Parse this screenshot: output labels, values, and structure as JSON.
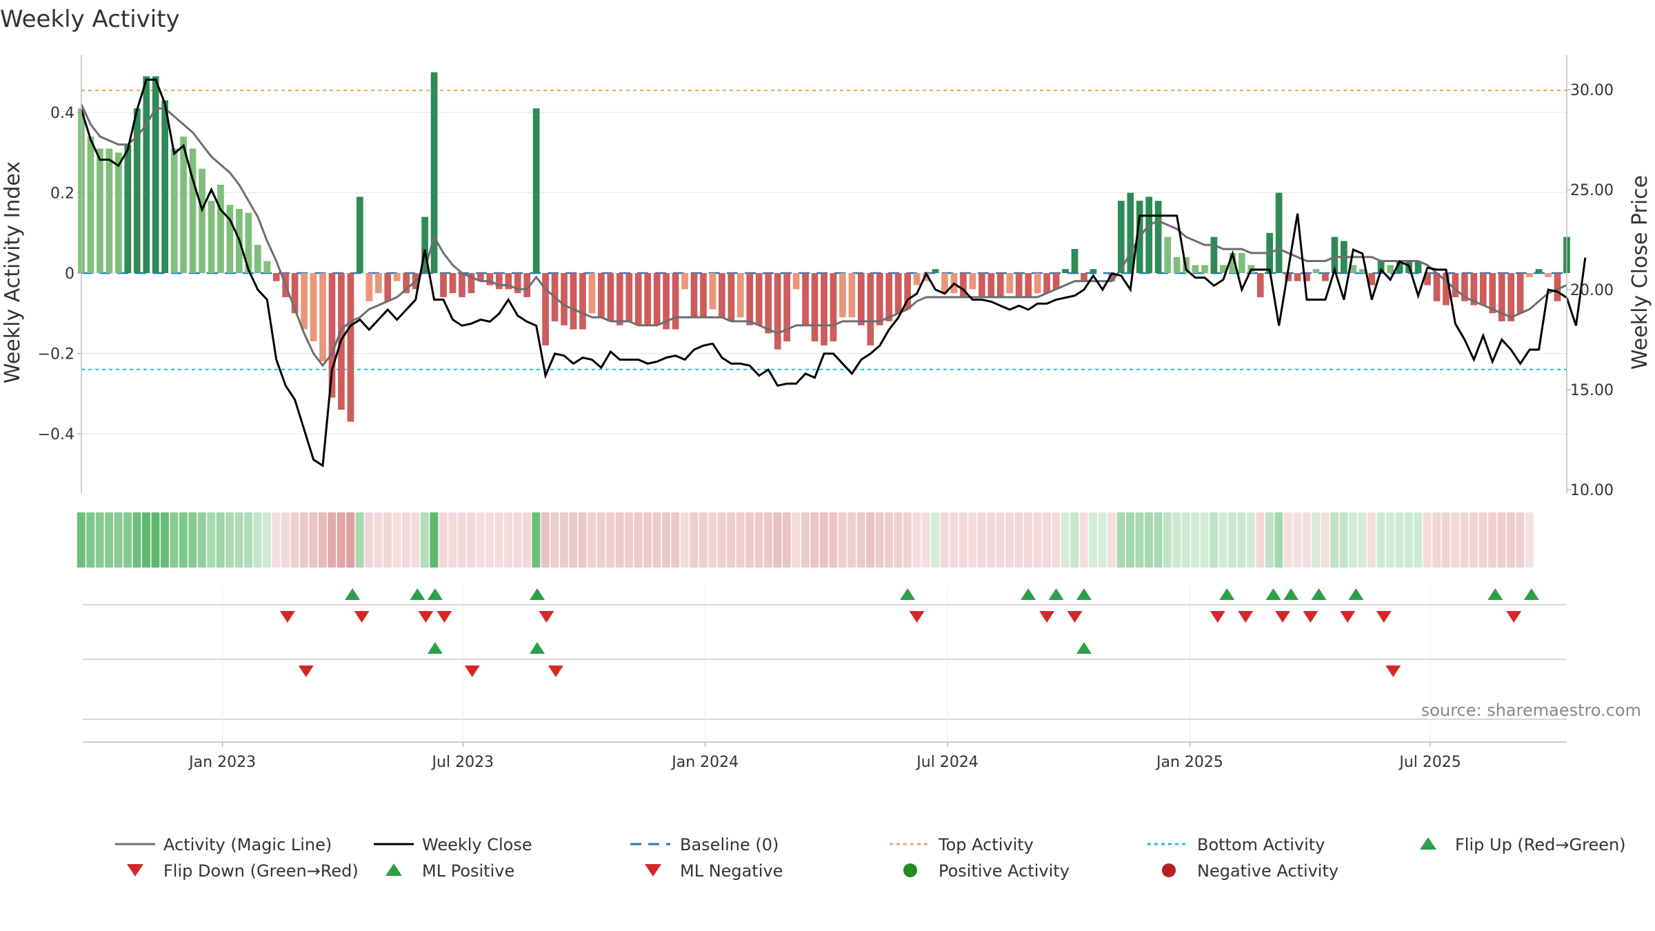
{
  "chart_data": {
    "type": "bar",
    "title": "Weekly Activity",
    "ylabel": "Weekly Activity Index",
    "ylabel_right": "Weekly Close Price",
    "ylim": [
      -0.54,
      0.55
    ],
    "ylim_right": [
      10,
      32
    ],
    "yticks": [
      -0.4,
      -0.2,
      0,
      0.2,
      0.4
    ],
    "ytick_labels": [
      "−0.4",
      "−0.2",
      "0",
      "0.2",
      "0.4"
    ],
    "yticks_right": [
      10,
      15,
      20,
      25,
      30
    ],
    "ytick_labels_right": [
      "10.00",
      "15.00",
      "20.00",
      "25.00",
      "30.00"
    ],
    "x_tick_labels": [
      "Jan 2023",
      "Jul 2023",
      "Jan 2024",
      "Jul 2024",
      "Jan 2025",
      "Jul 2025"
    ],
    "x_tick_weeks": [
      15.2,
      41.1,
      67.2,
      93.3,
      119.4,
      145.3
    ],
    "top_activity": 0.455,
    "bottom_activity": -0.24,
    "source": "source: sharemaestro.com",
    "legend": [
      "Activity (Magic Line)",
      "Weekly Close",
      "Baseline (0)",
      "Top Activity",
      "Bottom Activity",
      "Flip Up (Red→Green)",
      "Flip Down (Green→Red)",
      "ML Positive",
      "ML Negative",
      "Positive Activity",
      "Negative Activity"
    ],
    "colors": {
      "pos_strong": "#2e8b57",
      "pos_light": "#7fbf7b",
      "neg_strong": "#cd5c5c",
      "neg_light": "#e9967a",
      "magic_line": "#6e6e6e",
      "close": "#000000",
      "baseline": "#1f77b4",
      "top": "#f4a460",
      "bottom": "#20c0d0",
      "marker_up": "#2ca048",
      "marker_down": "#d62728",
      "pos_dot": "#228b22",
      "neg_dot": "#b22222",
      "strip_pos": "#5fb86f",
      "strip_neg": "#d88e8e",
      "grid": "#e6e6e6"
    },
    "activity": [
      0.41,
      0.34,
      0.31,
      0.31,
      0.3,
      0.32,
      0.41,
      0.49,
      0.49,
      0.43,
      0.31,
      0.34,
      0.31,
      0.26,
      0.18,
      0.22,
      0.17,
      0.16,
      0.15,
      0.07,
      0.03,
      -0.02,
      -0.06,
      -0.1,
      -0.14,
      -0.17,
      -0.22,
      -0.31,
      -0.34,
      -0.37,
      0.19,
      -0.07,
      -0.05,
      -0.07,
      -0.02,
      -0.05,
      -0.04,
      0.14,
      0.5,
      -0.06,
      -0.05,
      -0.06,
      -0.05,
      -0.02,
      -0.03,
      -0.04,
      -0.04,
      -0.05,
      -0.06,
      0.41,
      -0.18,
      -0.12,
      -0.13,
      -0.14,
      -0.14,
      -0.1,
      -0.11,
      -0.12,
      -0.13,
      -0.12,
      -0.13,
      -0.13,
      -0.13,
      -0.14,
      -0.14,
      -0.04,
      -0.11,
      -0.11,
      -0.09,
      -0.11,
      -0.12,
      -0.11,
      -0.13,
      -0.13,
      -0.15,
      -0.19,
      -0.17,
      -0.04,
      -0.13,
      -0.17,
      -0.18,
      -0.17,
      -0.11,
      -0.11,
      -0.13,
      -0.18,
      -0.13,
      -0.12,
      -0.1,
      -0.09,
      -0.03,
      -0.02,
      0.01,
      -0.05,
      -0.05,
      -0.06,
      -0.04,
      -0.06,
      -0.06,
      -0.06,
      -0.05,
      -0.06,
      -0.06,
      -0.05,
      -0.05,
      -0.04,
      0.01,
      0.06,
      -0.02,
      0.01,
      0.0,
      -0.02,
      0.18,
      0.2,
      0.18,
      0.19,
      0.18,
      0.09,
      0.04,
      0.04,
      0.02,
      0.02,
      0.09,
      0.02,
      0.05,
      0.05,
      0.02,
      -0.06,
      0.1,
      0.2,
      -0.02,
      -0.02,
      -0.02,
      0.01,
      -0.02,
      0.09,
      0.08,
      0.02,
      0.01,
      -0.03,
      0.03,
      0.02,
      0.03,
      0.03,
      0.03,
      -0.03,
      -0.07,
      -0.08,
      -0.06,
      -0.07,
      -0.08,
      -0.08,
      -0.1,
      -0.12,
      -0.12,
      -0.1,
      -0.01,
      0.01,
      -0.01,
      -0.07,
      0.09
    ],
    "magic_line": [
      0.42,
      0.37,
      0.34,
      0.33,
      0.32,
      0.32,
      0.34,
      0.37,
      0.41,
      0.41,
      0.39,
      0.37,
      0.35,
      0.32,
      0.29,
      0.27,
      0.25,
      0.22,
      0.18,
      0.14,
      0.08,
      0.03,
      -0.03,
      -0.09,
      -0.15,
      -0.2,
      -0.23,
      -0.2,
      -0.14,
      -0.12,
      -0.11,
      -0.09,
      -0.08,
      -0.07,
      -0.06,
      -0.04,
      -0.02,
      0.01,
      0.09,
      0.05,
      0.02,
      0.0,
      -0.01,
      -0.02,
      -0.02,
      -0.03,
      -0.03,
      -0.04,
      -0.04,
      -0.01,
      -0.04,
      -0.06,
      -0.08,
      -0.09,
      -0.1,
      -0.11,
      -0.11,
      -0.12,
      -0.12,
      -0.12,
      -0.13,
      -0.13,
      -0.13,
      -0.12,
      -0.11,
      -0.11,
      -0.11,
      -0.11,
      -0.11,
      -0.11,
      -0.12,
      -0.12,
      -0.12,
      -0.13,
      -0.14,
      -0.15,
      -0.14,
      -0.13,
      -0.13,
      -0.13,
      -0.13,
      -0.13,
      -0.12,
      -0.12,
      -0.12,
      -0.12,
      -0.12,
      -0.11,
      -0.1,
      -0.09,
      -0.07,
      -0.06,
      -0.06,
      -0.06,
      -0.06,
      -0.06,
      -0.06,
      -0.06,
      -0.06,
      -0.06,
      -0.06,
      -0.06,
      -0.06,
      -0.06,
      -0.05,
      -0.04,
      -0.03,
      -0.02,
      -0.02,
      -0.02,
      -0.02,
      -0.02,
      0.01,
      0.05,
      0.09,
      0.12,
      0.13,
      0.12,
      0.11,
      0.09,
      0.08,
      0.07,
      0.07,
      0.06,
      0.06,
      0.06,
      0.05,
      0.05,
      0.05,
      0.06,
      0.05,
      0.04,
      0.03,
      0.03,
      0.03,
      0.04,
      0.04,
      0.04,
      0.04,
      0.04,
      0.03,
      0.03,
      0.03,
      0.03,
      0.03,
      0.02,
      0.0,
      -0.02,
      -0.04,
      -0.06,
      -0.07,
      -0.08,
      -0.09,
      -0.1,
      -0.11,
      -0.1,
      -0.09,
      -0.07,
      -0.05,
      -0.04,
      -0.03
    ],
    "weekly_close": [
      29.0,
      27.5,
      26.5,
      26.5,
      26.2,
      27.0,
      29.0,
      30.5,
      30.5,
      29.3,
      26.8,
      27.2,
      25.5,
      24.0,
      25.0,
      24.0,
      23.5,
      22.5,
      21.0,
      20.0,
      19.5,
      16.5,
      15.2,
      14.5,
      13.0,
      11.5,
      11.2,
      16.0,
      17.5,
      18.2,
      18.5,
      18.0,
      18.5,
      19.0,
      18.5,
      19.0,
      19.5,
      22.0,
      19.5,
      19.5,
      18.5,
      18.2,
      18.3,
      18.5,
      18.4,
      18.8,
      19.5,
      18.7,
      18.4,
      18.2,
      15.7,
      16.8,
      16.7,
      16.3,
      16.6,
      16.5,
      16.1,
      16.9,
      16.5,
      16.5,
      16.5,
      16.3,
      16.4,
      16.6,
      16.7,
      16.5,
      17.0,
      17.2,
      17.3,
      16.6,
      16.3,
      16.3,
      16.2,
      15.7,
      16.0,
      15.2,
      15.3,
      15.3,
      15.8,
      15.6,
      16.8,
      16.8,
      16.3,
      15.8,
      16.5,
      16.8,
      17.2,
      18.0,
      18.6,
      19.5,
      19.8,
      20.8,
      20.0,
      19.8,
      20.3,
      20.0,
      19.5,
      19.5,
      19.4,
      19.2,
      19.0,
      19.2,
      19.0,
      19.3,
      19.3,
      19.5,
      19.6,
      19.7,
      20.0,
      20.7,
      20.0,
      20.8,
      20.7,
      20.0,
      23.7,
      23.7,
      23.7,
      23.7,
      23.7,
      21.0,
      20.6,
      20.6,
      20.2,
      20.5,
      21.8,
      20.0,
      21.0,
      21.0,
      21.0,
      18.2,
      21.0,
      23.8,
      19.5,
      19.5,
      19.5,
      21.0,
      19.5,
      22.0,
      21.8,
      19.5,
      21.0,
      20.5,
      21.4,
      21.2,
      19.7,
      21.1,
      21.0,
      21.0,
      18.3,
      17.5,
      16.5,
      17.7,
      16.4,
      17.5,
      17.0,
      16.3,
      17.0,
      17.0,
      20.0,
      19.9,
      19.6,
      18.2,
      21.6
    ],
    "strip_weeks": [
      0,
      1,
      2,
      3,
      4,
      5,
      6,
      7,
      8,
      9,
      10,
      11,
      12,
      13,
      14,
      15,
      16,
      17,
      18,
      19,
      20,
      21,
      22,
      23,
      24,
      25,
      26,
      27,
      28,
      29,
      30,
      31,
      32,
      33,
      34,
      35,
      36,
      37,
      38,
      39,
      40,
      41,
      42,
      43,
      44,
      45,
      46,
      47,
      48,
      49,
      50,
      51,
      52,
      53,
      54,
      55,
      56,
      57,
      58,
      59,
      60,
      61,
      62,
      63,
      64,
      65,
      66,
      67,
      68,
      69,
      70,
      71,
      72,
      73,
      74,
      75,
      76,
      77,
      78,
      79,
      80,
      81,
      82,
      83,
      84,
      85,
      86,
      87,
      88,
      89,
      90,
      91,
      92,
      93,
      94,
      95,
      96,
      97,
      98,
      99,
      100,
      101,
      102,
      103,
      104,
      105,
      106,
      107,
      108,
      109,
      110,
      111,
      112,
      113,
      114,
      115,
      116,
      117,
      118,
      119,
      120,
      121,
      122,
      123,
      124,
      125,
      126,
      127,
      128,
      129,
      130,
      131,
      132,
      133,
      134,
      135,
      136,
      137,
      138,
      139,
      140,
      141,
      142,
      143,
      144,
      145,
      146,
      147,
      148,
      149,
      150,
      151,
      152,
      153,
      154,
      155,
      156
    ],
    "flip_up_weeks": [
      29.2,
      36.2,
      38.1,
      49.1,
      89.0,
      102.0,
      105.0,
      108.0,
      123.4,
      128.4,
      130.3,
      133.3,
      137.3,
      152.3,
      156.2
    ],
    "flip_down_weeks": [
      22.2,
      30.2,
      37.1,
      39.1,
      50.1,
      90.0,
      104.0,
      107.0,
      122.4,
      125.4,
      129.4,
      132.4,
      136.4,
      140.3,
      154.3
    ],
    "ml_positive_weeks": [
      38.1,
      49.1,
      108.0
    ],
    "ml_negative_weeks": [
      24.2,
      42.1,
      51.1,
      141.3
    ]
  }
}
